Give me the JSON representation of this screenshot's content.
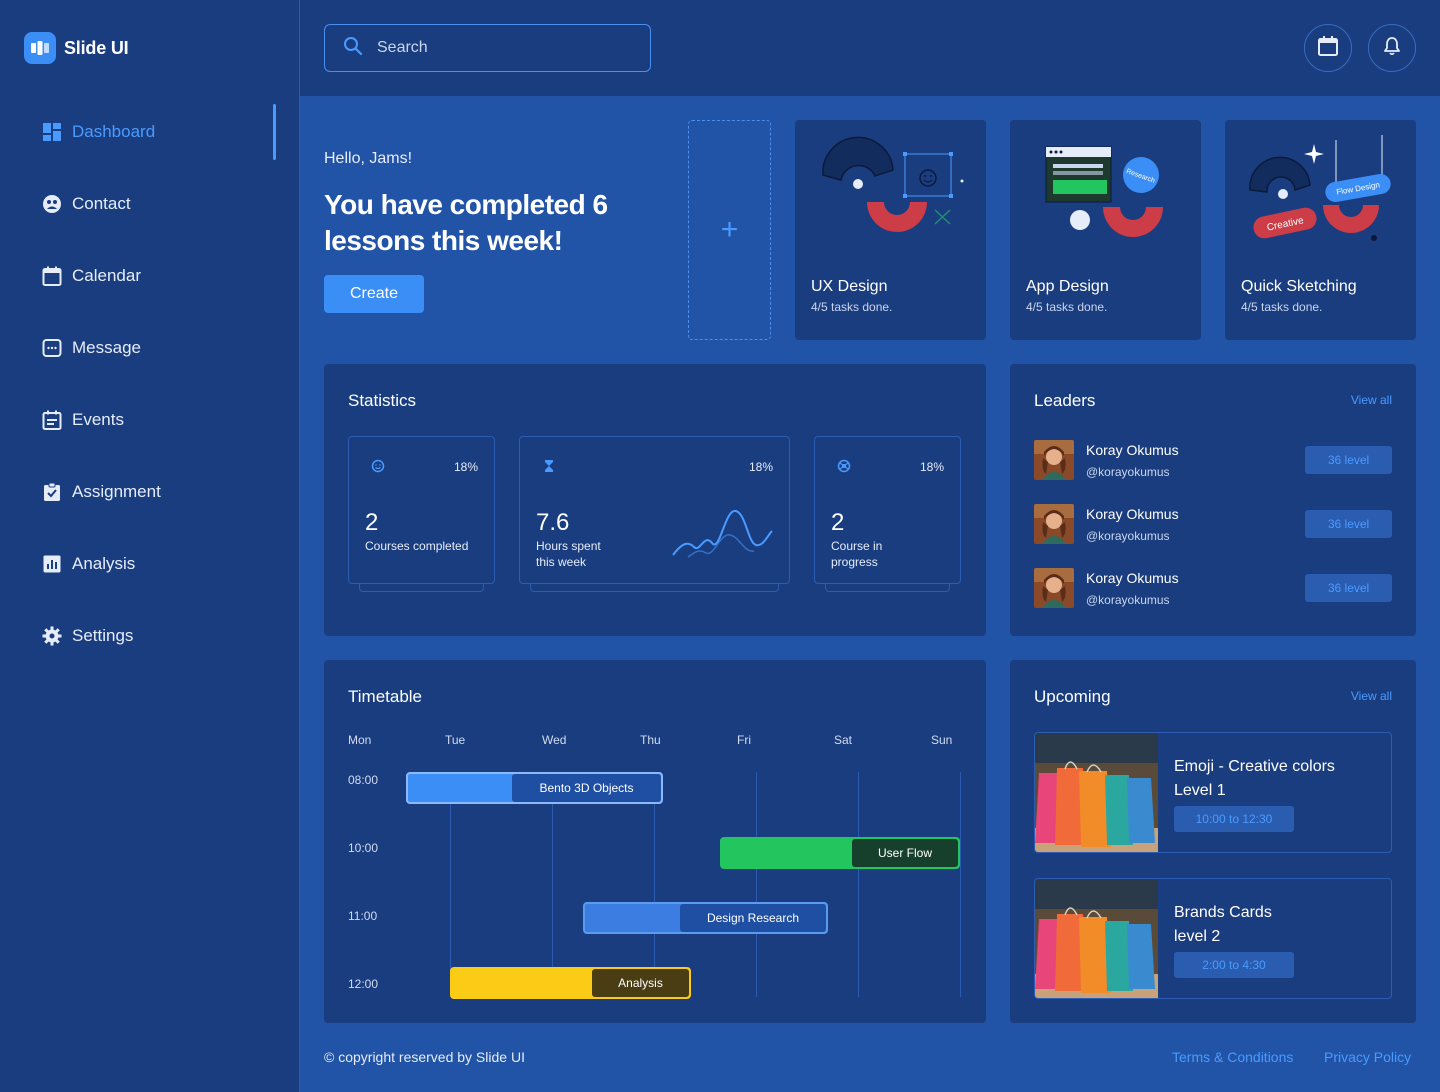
{
  "app": {
    "name": "Slide UI"
  },
  "sidebar": {
    "items": [
      {
        "label": "Dashboard",
        "icon": "dashboard-icon",
        "active": true
      },
      {
        "label": "Contact",
        "icon": "contact-icon"
      },
      {
        "label": "Calendar",
        "icon": "calendar-icon"
      },
      {
        "label": "Message",
        "icon": "message-icon"
      },
      {
        "label": "Events",
        "icon": "events-icon"
      },
      {
        "label": "Assignment",
        "icon": "assignment-icon"
      },
      {
        "label": "Analysis",
        "icon": "analysis-icon"
      },
      {
        "label": "Settings",
        "icon": "settings-icon"
      }
    ]
  },
  "header": {
    "search_placeholder": "Search",
    "buttons": [
      "calendar-icon",
      "bell-icon"
    ]
  },
  "hero": {
    "greeting": "Hello, Jams!",
    "title": "You have completed 6 lessons this week!",
    "create_label": "Create",
    "add_symbol": "+"
  },
  "courses": [
    {
      "title": "UX Design",
      "status": "4/5 tasks done."
    },
    {
      "title": "App Design",
      "status": "4/5 tasks done.",
      "badge": "Research"
    },
    {
      "title": "Quick Sketching",
      "status": "4/5 tasks done.",
      "tags": [
        "Flow Design",
        "Creative"
      ]
    }
  ],
  "statistics": {
    "title": "Statistics",
    "cards": [
      {
        "icon": "smile-icon",
        "percent": "18%",
        "value": "2",
        "label": "Courses completed"
      },
      {
        "icon": "hourglass-icon",
        "percent": "18%",
        "value": "7.6",
        "label": "Hours spent this week"
      },
      {
        "icon": "target-icon",
        "percent": "18%",
        "value": "2",
        "label": "Course in progress"
      }
    ]
  },
  "leaders": {
    "title": "Leaders",
    "view_all": "View all",
    "items": [
      {
        "name": "Koray Okumus",
        "handle": "@korayokumus",
        "level": "36 level"
      },
      {
        "name": "Koray Okumus",
        "handle": "@korayokumus",
        "level": "36 level"
      },
      {
        "name": "Koray Okumus",
        "handle": "@korayokumus",
        "level": "36 level"
      }
    ]
  },
  "timetable": {
    "title": "Timetable",
    "days": [
      "Mon",
      "Tue",
      "Wed",
      "Thu",
      "Fri",
      "Sat",
      "Sun"
    ],
    "times": [
      "08:00",
      "10:00",
      "11:00",
      "12:00"
    ],
    "events": [
      {
        "label": "Bento 3D Objects",
        "color": "#3c8ef7",
        "label_bg": "#1f4fa3",
        "border": "#8bb8ff"
      },
      {
        "label": "User Flow",
        "color": "#22c55e",
        "label_bg": "#17402c",
        "border": "#22c55e"
      },
      {
        "label": "Design Research",
        "color": "#3b7de0",
        "label_bg": "#1f4fa3",
        "border": "#5a9bf0"
      },
      {
        "label": "Analysis",
        "color": "#facc15",
        "label_bg": "#4a3d14",
        "border": "#facc15"
      }
    ]
  },
  "upcoming": {
    "title": "Upcoming",
    "view_all": "View all",
    "items": [
      {
        "title": "Emoji - Creative colors Level 1",
        "time": "10:00 to 12:30"
      },
      {
        "title": "Brands Cards level 2",
        "time": "2:00 to 4:30"
      }
    ]
  },
  "footer": {
    "copyright": "© copyright reserved by Slide UI",
    "links": [
      "Terms & Conditions",
      "Privacy Policy"
    ]
  }
}
